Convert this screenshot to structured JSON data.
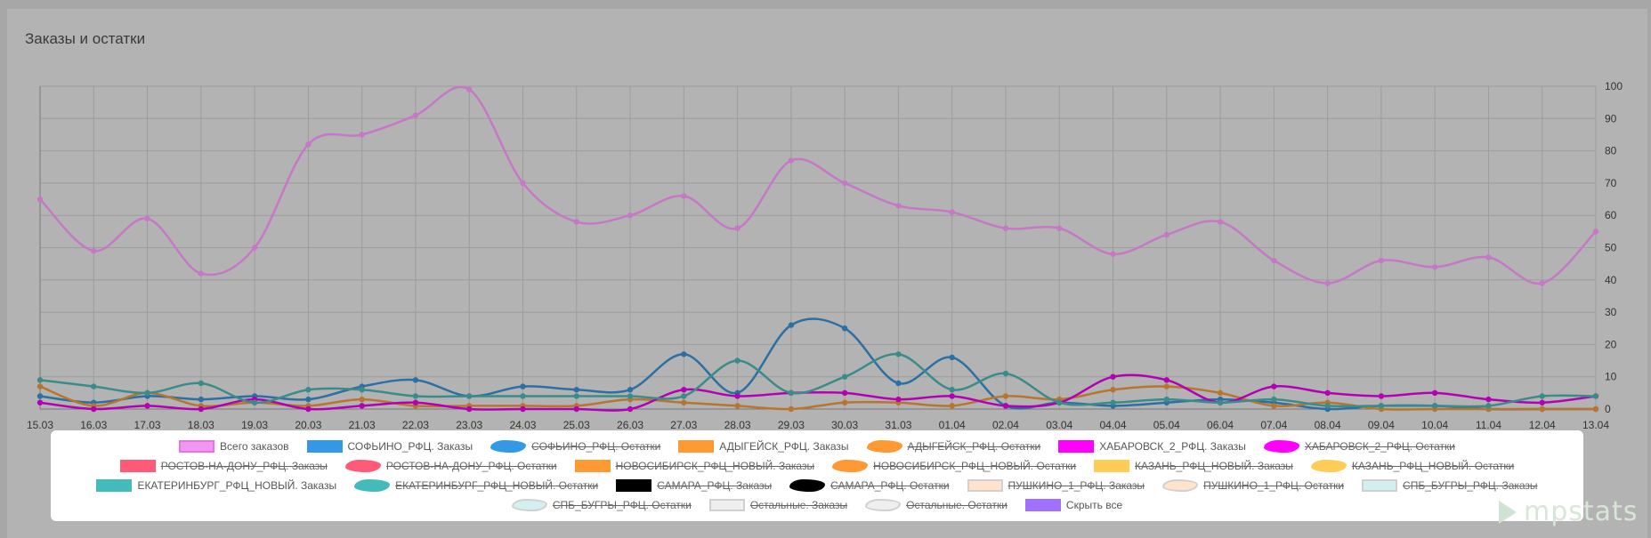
{
  "title": "Заказы и остатки",
  "brand": "mpstats",
  "chart_data": {
    "type": "line",
    "x": [
      "15.03",
      "16.03",
      "17.03",
      "18.03",
      "19.03",
      "20.03",
      "21.03",
      "22.03",
      "23.03",
      "24.03",
      "25.03",
      "26.03",
      "27.03",
      "28.03",
      "29.03",
      "30.03",
      "31.03",
      "01.04",
      "02.04",
      "03.04",
      "04.04",
      "05.04",
      "06.04",
      "07.04",
      "08.04",
      "09.04",
      "10.04",
      "11.04",
      "12.04",
      "13.04"
    ],
    "ylim": [
      0,
      100
    ],
    "yticks": [
      0,
      10,
      20,
      30,
      40,
      50,
      60,
      70,
      80,
      90,
      100
    ],
    "grid": true,
    "legend_position": "bottom",
    "series": [
      {
        "name": "Всего заказов",
        "color": "#c678c6",
        "values": [
          65,
          49,
          59,
          42,
          50,
          82,
          85,
          91,
          99,
          70,
          58,
          60,
          66,
          56,
          77,
          70,
          63,
          61,
          56,
          56,
          48,
          54,
          58,
          46,
          39,
          46,
          44,
          47,
          39,
          55
        ]
      },
      {
        "name": "СОФЬИНО_РФЦ. Заказы",
        "color": "#2b6fa3",
        "values": [
          4,
          2,
          4,
          3,
          4,
          3,
          7,
          9,
          4,
          7,
          6,
          6,
          17,
          5,
          26,
          25,
          8,
          16,
          1,
          2,
          1,
          2,
          3,
          2,
          0,
          1,
          1,
          0,
          0,
          0
        ]
      },
      {
        "name": "АДЫГЕЙСК_РФЦ. Заказы",
        "color": "#b8752e",
        "values": [
          7,
          1,
          5,
          1,
          2,
          1,
          3,
          1,
          1,
          1,
          1,
          3,
          2,
          1,
          0,
          2,
          2,
          1,
          4,
          3,
          6,
          7,
          5,
          1,
          2,
          0,
          0,
          0,
          0,
          0
        ]
      },
      {
        "name": "ХАБАРОВСК_2_РФЦ. Заказы",
        "color": "#b400b4",
        "values": [
          2,
          0,
          1,
          0,
          3,
          0,
          1,
          2,
          0,
          0,
          0,
          0,
          6,
          4,
          5,
          5,
          3,
          4,
          1,
          2,
          10,
          9,
          2,
          7,
          5,
          4,
          5,
          3,
          2,
          4
        ]
      },
      {
        "name": "ЕКАТЕРИНБУРГ_РФЦ_НОВЫЙ. Заказы",
        "color": "#3a8c8a",
        "values": [
          9,
          7,
          5,
          8,
          2,
          6,
          6,
          4,
          4,
          4,
          4,
          4,
          4,
          15,
          5,
          10,
          17,
          6,
          11,
          2,
          2,
          3,
          2,
          3,
          1,
          1,
          1,
          1,
          4,
          4
        ]
      }
    ]
  },
  "legend": [
    {
      "label": "Всего заказов",
      "color": "#f08cf0",
      "style": "box",
      "active": true
    },
    {
      "label": "СОФЬИНО_РФЦ. Заказы",
      "color": "#3399e6",
      "style": "solid",
      "active": true
    },
    {
      "label": "СОФЬИНО_РФЦ. Остатки",
      "color": "#3399e6",
      "style": "wavy",
      "active": false
    },
    {
      "label": "АДЫГЕЙСК_РФЦ. Заказы",
      "color": "#ff9933",
      "style": "solid",
      "active": true
    },
    {
      "label": "АДЫГЕЙСК_РФЦ. Остатки",
      "color": "#ff9933",
      "style": "wavy",
      "active": false
    },
    {
      "label": "ХАБАРОВСК_2_РФЦ. Заказы",
      "color": "#ff00ff",
      "style": "solid",
      "active": true
    },
    {
      "label": "ХАБАРОВСК_2_РФЦ. Остатки",
      "color": "#ff00ff",
      "style": "wavy",
      "active": false
    },
    {
      "label": "РОСТОВ-НА-ДОНУ_РФЦ. Заказы",
      "color": "#ff5a78",
      "style": "solid",
      "active": false
    },
    {
      "label": "РОСТОВ-НА-ДОНУ_РФЦ. Остатки",
      "color": "#ff5a78",
      "style": "wavy",
      "active": false
    },
    {
      "label": "НОВОСИБИРСК_РФЦ_НОВЫЙ. Заказы",
      "color": "#ff9933",
      "style": "solid",
      "active": false
    },
    {
      "label": "НОВОСИБИРСК_РФЦ_НОВЫЙ. Остатки",
      "color": "#ff9933",
      "style": "wavy",
      "active": false
    },
    {
      "label": "КАЗАНЬ_РФЦ_НОВЫЙ. Заказы",
      "color": "#ffcc55",
      "style": "solid",
      "active": false
    },
    {
      "label": "КАЗАНЬ_РФЦ_НОВЫЙ. Остатки",
      "color": "#ffcc55",
      "style": "wavy",
      "active": false
    },
    {
      "label": "ЕКАТЕРИНБУРГ_РФЦ_НОВЫЙ. Заказы",
      "color": "#44bbbb",
      "style": "solid",
      "active": true
    },
    {
      "label": "ЕКАТЕРИНБУРГ_РФЦ_НОВЫЙ. Остатки",
      "color": "#44bbbb",
      "style": "wavy",
      "active": false
    },
    {
      "label": "САМАРА_РФЦ. Заказы",
      "color": "#000000",
      "style": "solid",
      "active": false
    },
    {
      "label": "САМАРА_РФЦ. Остатки",
      "color": "#000000",
      "style": "wavy",
      "active": false
    },
    {
      "label": "ПУШКИНО_1_РФЦ. Заказы",
      "color": "#ffe0c8",
      "style": "box",
      "active": false
    },
    {
      "label": "ПУШКИНО_1_РФЦ. Остатки",
      "color": "#ffe0c8",
      "style": "wavybox",
      "active": false
    },
    {
      "label": "СПБ_БУГРЫ_РФЦ. Заказы",
      "color": "#cfeeee",
      "style": "box",
      "active": false
    },
    {
      "label": "СПБ_БУГРЫ_РФЦ. Остатки",
      "color": "#cfeeee",
      "style": "wavybox",
      "active": false
    },
    {
      "label": "Остальные. Заказы",
      "color": "#eeeeee",
      "style": "box",
      "active": false
    },
    {
      "label": "Остальные. Остатки",
      "color": "#eeeeee",
      "style": "wavybox",
      "active": false
    },
    {
      "label": "Скрыть все",
      "color": "#a070ff",
      "style": "solid",
      "active": true
    }
  ]
}
